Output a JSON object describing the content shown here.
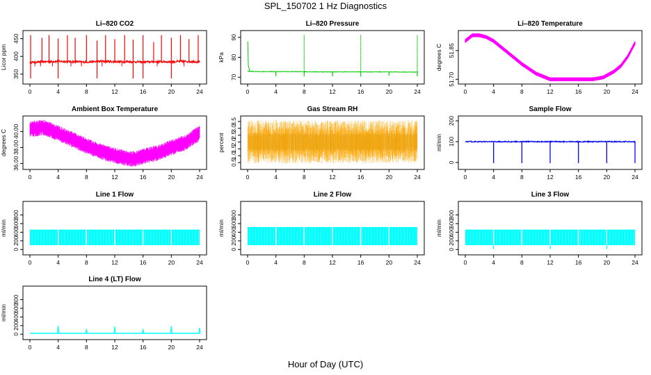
{
  "title": "SPL_150702  1 Hz Diagnostics",
  "xlabel": "Hour of Day (UTC)",
  "chart_data": [
    {
      "type": "line",
      "title": "Li–820 CO2",
      "ylabel": "Licor ppm",
      "color": "#ff0000",
      "xlim": [
        0,
        24
      ],
      "xticks": [
        0,
        4,
        8,
        12,
        16,
        20,
        24
      ],
      "ylim": [
        330,
        465
      ],
      "yticks": [
        350,
        400,
        450
      ],
      "series": [
        {
          "x": [
            0,
            2,
            4,
            6,
            8,
            10,
            12,
            14,
            16,
            18,
            20,
            22,
            24
          ],
          "y": [
            383,
            385,
            386,
            385,
            384,
            386,
            385,
            385,
            384,
            385,
            385,
            386,
            385
          ]
        }
      ]
    },
    {
      "type": "line",
      "title": "Li–820 Pressure",
      "ylabel": "kPa",
      "color": "#00cc00",
      "xlim": [
        0,
        24
      ],
      "xticks": [
        0,
        4,
        8,
        12,
        16,
        20,
        24
      ],
      "ylim": [
        68,
        92
      ],
      "yticks": [
        70,
        80,
        90
      ],
      "series": [
        {
          "x": [
            0,
            2,
            4,
            6,
            8,
            10,
            12,
            14,
            16,
            18,
            20,
            22,
            24
          ],
          "y": [
            73,
            72.8,
            72.8,
            72.8,
            72.8,
            72.7,
            72.7,
            72.7,
            72.7,
            72.7,
            72.7,
            72.6,
            72.6
          ]
        }
      ]
    },
    {
      "type": "line",
      "title": "Li–820 Temperature",
      "ylabel": "degrees C",
      "color": "#ff00ff",
      "xlim": [
        0,
        24
      ],
      "xticks": [
        0,
        4,
        8,
        12,
        16,
        20,
        24
      ],
      "ylim": [
        51.69,
        51.94
      ],
      "yticks": [
        51.7,
        51.85
      ],
      "series": [
        {
          "x": [
            0,
            1,
            2,
            3,
            4,
            6,
            8,
            10,
            12,
            14,
            16,
            18,
            19.5,
            21,
            22,
            23,
            24
          ],
          "y": [
            51.9,
            51.93,
            51.93,
            51.92,
            51.9,
            51.84,
            51.78,
            51.73,
            51.7,
            51.7,
            51.7,
            51.7,
            51.71,
            51.74,
            51.77,
            51.82,
            51.89
          ]
        }
      ]
    },
    {
      "type": "line",
      "title": "Ambient Box Temperature",
      "ylabel": "degrees C",
      "color": "#ff00ff",
      "xlim": [
        0,
        24
      ],
      "xticks": [
        0,
        4,
        8,
        12,
        16,
        20,
        24
      ],
      "ylim": [
        35.6,
        41.6
      ],
      "yticks": [
        36,
        38,
        40
      ],
      "series": [
        {
          "x": [
            0,
            2,
            4,
            6,
            8,
            10,
            12,
            14,
            15,
            16,
            18,
            20,
            22,
            24
          ],
          "y": [
            40.3,
            40.5,
            39.8,
            39.0,
            38.2,
            37.5,
            37.0,
            36.6,
            36.6,
            36.9,
            37.3,
            38.0,
            38.6,
            39.8
          ]
        }
      ]
    },
    {
      "type": "line",
      "title": "Gas Stream RH",
      "ylabel": "percent",
      "color": "#ffa500",
      "xlim": [
        0,
        24
      ],
      "xticks": [
        0,
        4,
        8,
        12,
        16,
        20,
        24
      ],
      "ylim": [
        0.2,
        3.7
      ],
      "yticks": [
        0.5,
        1.0,
        1.5,
        2.0,
        2.5,
        3.0,
        3.5
      ],
      "series": [
        {
          "x": [
            0,
            4,
            8,
            12,
            16,
            20,
            24
          ],
          "y": [
            2.0,
            2.0,
            2.0,
            2.0,
            2.0,
            2.0,
            2.0
          ]
        }
      ]
    },
    {
      "type": "line",
      "title": "Sample Flow",
      "ylabel": "ml/min",
      "color": "#0000ff",
      "xlim": [
        0,
        24
      ],
      "xticks": [
        0,
        4,
        8,
        12,
        16,
        20,
        24
      ],
      "ylim": [
        -20,
        210
      ],
      "yticks": [
        0,
        100,
        200
      ],
      "series": [
        {
          "x": [
            0,
            4,
            8,
            12,
            16,
            20,
            24
          ],
          "y": [
            100,
            100,
            100,
            100,
            100,
            100,
            100
          ]
        }
      ]
    },
    {
      "type": "area",
      "title": "Line 1 Flow",
      "ylabel": "ml/min",
      "color": "#00ffff",
      "xlim": [
        0,
        24
      ],
      "xticks": [
        0,
        4,
        8,
        12,
        16,
        20,
        24
      ],
      "ylim": [
        -60,
        1050
      ],
      "yticks": [
        0,
        200,
        400,
        600,
        800
      ],
      "series": [
        {
          "name": "upper",
          "x": [
            0,
            24
          ],
          "y": [
            460,
            460
          ]
        },
        {
          "name": "lower",
          "x": [
            0,
            24
          ],
          "y": [
            100,
            100
          ]
        }
      ]
    },
    {
      "type": "area",
      "title": "Line 2 Flow",
      "ylabel": "ml/min",
      "color": "#00ffff",
      "xlim": [
        0,
        24
      ],
      "xticks": [
        0,
        4,
        8,
        12,
        16,
        20,
        24
      ],
      "ylim": [
        -60,
        1050
      ],
      "yticks": [
        0,
        200,
        400,
        600,
        800
      ],
      "series": [
        {
          "name": "upper",
          "x": [
            0,
            24
          ],
          "y": [
            520,
            520
          ]
        },
        {
          "name": "lower",
          "x": [
            0,
            24
          ],
          "y": [
            100,
            100
          ]
        }
      ]
    },
    {
      "type": "area",
      "title": "Line 3 Flow",
      "ylabel": "ml/min",
      "color": "#00ffff",
      "xlim": [
        0,
        24
      ],
      "xticks": [
        0,
        4,
        8,
        12,
        16,
        20,
        24
      ],
      "ylim": [
        -60,
        1050
      ],
      "yticks": [
        0,
        200,
        400,
        600,
        800
      ],
      "series": [
        {
          "name": "upper",
          "x": [
            0,
            24
          ],
          "y": [
            460,
            460
          ]
        },
        {
          "name": "lower",
          "x": [
            0,
            24
          ],
          "y": [
            100,
            100
          ]
        }
      ]
    },
    {
      "type": "line",
      "title": "Line 4 (LT) Flow",
      "ylabel": "ml/min",
      "color": "#00ffff",
      "xlim": [
        0,
        24
      ],
      "xticks": [
        0,
        4,
        8,
        12,
        16,
        20,
        24
      ],
      "ylim": [
        -60,
        1050
      ],
      "yticks": [
        0,
        200,
        400,
        600,
        800
      ],
      "series": [
        {
          "x": [
            0,
            4,
            8,
            12,
            16,
            20,
            24
          ],
          "y": [
            20,
            20,
            20,
            20,
            20,
            20,
            20
          ]
        }
      ]
    }
  ]
}
